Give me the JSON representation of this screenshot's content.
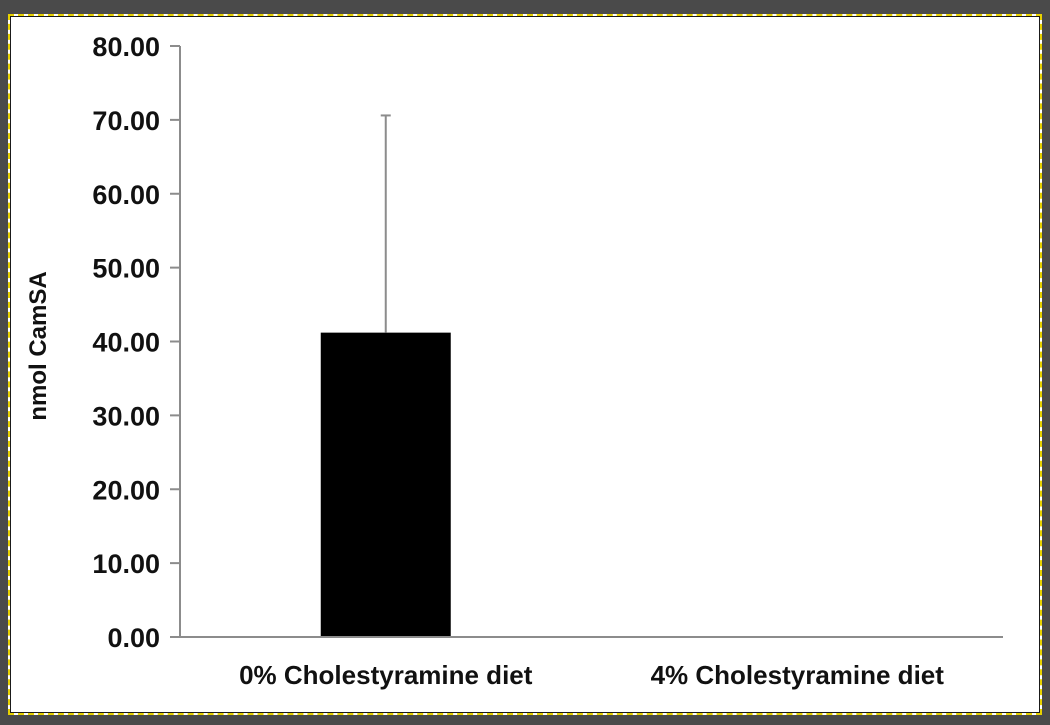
{
  "chart_data": {
    "type": "bar",
    "title": "",
    "xlabel": "",
    "ylabel": "nmol CamSA",
    "categories": [
      "0% Cholestyramine diet",
      "4% Cholestyramine diet"
    ],
    "values": [
      41.2,
      0
    ],
    "error_upper": [
      70.6,
      null
    ],
    "ylim": [
      0,
      80
    ],
    "yticks": [
      "0.00",
      "10.00",
      "20.00",
      "30.00",
      "40.00",
      "50.00",
      "60.00",
      "70.00",
      "80.00"
    ],
    "grid": false,
    "legend": "none",
    "colors": {
      "bar": "#000000",
      "axis": "#8c8c8c",
      "error_bar": "#8c8c8c"
    }
  }
}
